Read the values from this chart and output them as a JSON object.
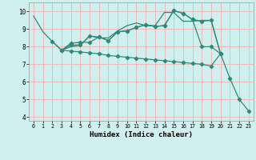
{
  "xlabel": "Humidex (Indice chaleur)",
  "bg_color": "#cff0ee",
  "grid_color": "#f0b8b8",
  "line_color": "#2e8b7a",
  "xlim": [
    -0.5,
    23.5
  ],
  "ylim": [
    3.8,
    10.5
  ],
  "xticks": [
    0,
    1,
    2,
    3,
    4,
    5,
    6,
    7,
    8,
    9,
    10,
    11,
    12,
    13,
    14,
    15,
    16,
    17,
    18,
    19,
    20,
    21,
    22,
    23
  ],
  "yticks": [
    4,
    5,
    6,
    7,
    8,
    9,
    10
  ],
  "line1_x": [
    0,
    1,
    2,
    3,
    4,
    5,
    6,
    7,
    8,
    9,
    10,
    11,
    12,
    13,
    14,
    15,
    16,
    17,
    18,
    19,
    20
  ],
  "line1_y": [
    9.75,
    8.85,
    8.3,
    7.8,
    8.0,
    8.08,
    8.62,
    8.5,
    8.5,
    8.9,
    9.2,
    9.35,
    9.2,
    9.2,
    9.95,
    9.95,
    9.45,
    9.45,
    9.5,
    9.5,
    7.6
  ],
  "line2_x": [
    2,
    3,
    4,
    5,
    6,
    7,
    8,
    9,
    10,
    11,
    12,
    13,
    14,
    15,
    16,
    17,
    18,
    19,
    20
  ],
  "line2_y": [
    8.3,
    7.8,
    8.1,
    8.1,
    8.6,
    8.55,
    8.35,
    8.85,
    8.9,
    9.1,
    9.25,
    9.15,
    9.2,
    10.05,
    9.9,
    9.55,
    9.45,
    9.5,
    7.6
  ],
  "line3_x": [
    3,
    4,
    5,
    6,
    7,
    8,
    9,
    10,
    11,
    12,
    13,
    14,
    15,
    16,
    17,
    18,
    19,
    20
  ],
  "line3_y": [
    7.8,
    8.2,
    8.25,
    8.25,
    8.55,
    8.35,
    8.85,
    8.9,
    9.1,
    9.25,
    9.15,
    9.2,
    10.05,
    9.9,
    9.55,
    8.0,
    8.0,
    7.6
  ],
  "line4_x": [
    3,
    4,
    5,
    6,
    7,
    8,
    9,
    10,
    11,
    12,
    13,
    14,
    15,
    16,
    17,
    18,
    19,
    20,
    21,
    22,
    23
  ],
  "line4_y": [
    7.8,
    7.75,
    7.7,
    7.65,
    7.6,
    7.5,
    7.45,
    7.4,
    7.35,
    7.3,
    7.25,
    7.2,
    7.15,
    7.1,
    7.05,
    7.0,
    6.9,
    7.6,
    6.2,
    5.0,
    4.35
  ],
  "line2_markers": [
    2,
    3,
    5,
    6,
    7,
    8,
    9,
    10,
    12,
    13,
    14,
    15,
    16,
    17,
    19,
    20
  ],
  "line3_markers": [
    5,
    6,
    7,
    8,
    9,
    10,
    12,
    13,
    14,
    15,
    16,
    17,
    19
  ]
}
